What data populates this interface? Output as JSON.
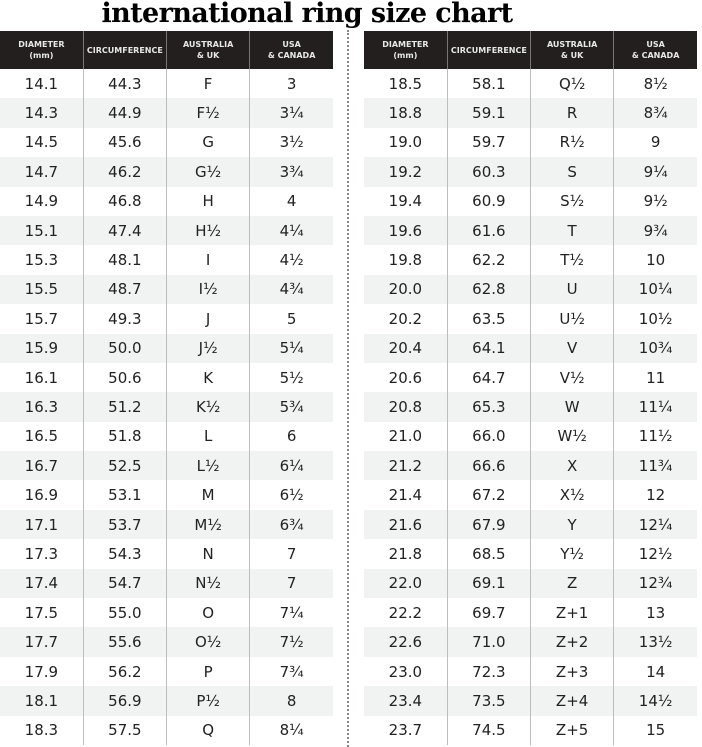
{
  "title": "international ring size chart",
  "headers": [
    "DIAMETER (mm)",
    "CIRCUMFERENCE",
    "AUSTRALIA & UK",
    "USA & CANADA"
  ],
  "left_rows": [
    [
      "14.1",
      "44.3",
      "F",
      "3"
    ],
    [
      "14.3",
      "44.9",
      "F½",
      "3¼"
    ],
    [
      "14.5",
      "45.6",
      "G",
      "3½"
    ],
    [
      "14.7",
      "46.2",
      "G½",
      "3¾"
    ],
    [
      "14.9",
      "46.8",
      "H",
      "4"
    ],
    [
      "15.1",
      "47.4",
      "H½",
      "4¼"
    ],
    [
      "15.3",
      "48.1",
      "I",
      "4½"
    ],
    [
      "15.5",
      "48.7",
      "I½",
      "4¾"
    ],
    [
      "15.7",
      "49.3",
      "J",
      "5"
    ],
    [
      "15.9",
      "50.0",
      "J½",
      "5¼"
    ],
    [
      "16.1",
      "50.6",
      "K",
      "5½"
    ],
    [
      "16.3",
      "51.2",
      "K½",
      "5¾"
    ],
    [
      "16.5",
      "51.8",
      "L",
      "6"
    ],
    [
      "16.7",
      "52.5",
      "L½",
      "6¼"
    ],
    [
      "16.9",
      "53.1",
      "M",
      "6½"
    ],
    [
      "17.1",
      "53.7",
      "M½",
      "6¾"
    ],
    [
      "17.3",
      "54.3",
      "N",
      "7"
    ],
    [
      "17.4",
      "54.7",
      "N½",
      "7"
    ],
    [
      "17.5",
      "55.0",
      "O",
      "7¼"
    ],
    [
      "17.7",
      "55.6",
      "O½",
      "7½"
    ],
    [
      "17.9",
      "56.2",
      "P",
      "7¾"
    ],
    [
      "18.1",
      "56.9",
      "P½",
      "8"
    ],
    [
      "18.3",
      "57.5",
      "Q",
      "8¼"
    ]
  ],
  "right_rows": [
    [
      "18.5",
      "58.1",
      "Q½",
      "8½"
    ],
    [
      "18.8",
      "59.1",
      "R",
      "8¾"
    ],
    [
      "19.0",
      "59.7",
      "R½",
      "9"
    ],
    [
      "19.2",
      "60.3",
      "S",
      "9¼"
    ],
    [
      "19.4",
      "60.9",
      "S½",
      "9½"
    ],
    [
      "19.6",
      "61.6",
      "T",
      "9¾"
    ],
    [
      "19.8",
      "62.2",
      "T½",
      "10"
    ],
    [
      "20.0",
      "62.8",
      "U",
      "10¼"
    ],
    [
      "20.2",
      "63.5",
      "U½",
      "10½"
    ],
    [
      "20.4",
      "64.1",
      "V",
      "10¾"
    ],
    [
      "20.6",
      "64.7",
      "V½",
      "11"
    ],
    [
      "20.8",
      "65.3",
      "W",
      "11¼"
    ],
    [
      "21.0",
      "66.0",
      "W½",
      "11½"
    ],
    [
      "21.2",
      "66.6",
      "X",
      "11¾"
    ],
    [
      "21.4",
      "67.2",
      "X½",
      "12"
    ],
    [
      "21.6",
      "67.9",
      "Y",
      "12¼"
    ],
    [
      "21.8",
      "68.5",
      "Y½",
      "12½"
    ],
    [
      "22.0",
      "69.1",
      "Z",
      "12¾"
    ],
    [
      "22.2",
      "69.7",
      "Z+1",
      "13"
    ],
    [
      "22.6",
      "71.0",
      "Z+2",
      "13½"
    ],
    [
      "23.0",
      "72.3",
      "Z+3",
      "14"
    ],
    [
      "23.4",
      "73.5",
      "Z+4",
      "14½"
    ],
    [
      "23.7",
      "74.5",
      "Z+5",
      "15"
    ]
  ]
}
